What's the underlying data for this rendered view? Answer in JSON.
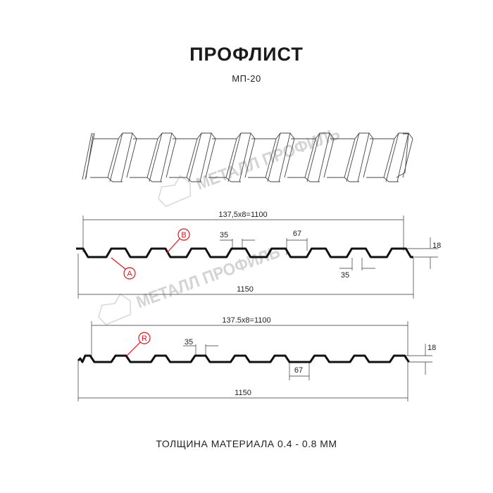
{
  "title": "ПРОФЛИСТ",
  "model": "МП-20",
  "thickness_note": "ТОЛЩИНА МАТЕРИАЛА 0.4 - 0.8 ММ",
  "watermark": "МЕТАЛЛ ПРОФИЛЬ",
  "colors": {
    "profile": "#111111",
    "marker": "#e8141c",
    "dimension": "#333333",
    "watermark": "#d4d4d4"
  },
  "profile_a": {
    "pitch_dim": "137,5x8=1100",
    "total_width": "1150",
    "rib_top": "35",
    "rib_bottom": "67",
    "rib_gap": "35",
    "height": "18",
    "marker_b": "B",
    "marker_a": "A"
  },
  "profile_r": {
    "pitch_dim": "137.5x8=1100",
    "total_width": "1150",
    "rib_top": "35",
    "rib_bottom": "67",
    "height": "18",
    "marker_r": "R"
  }
}
